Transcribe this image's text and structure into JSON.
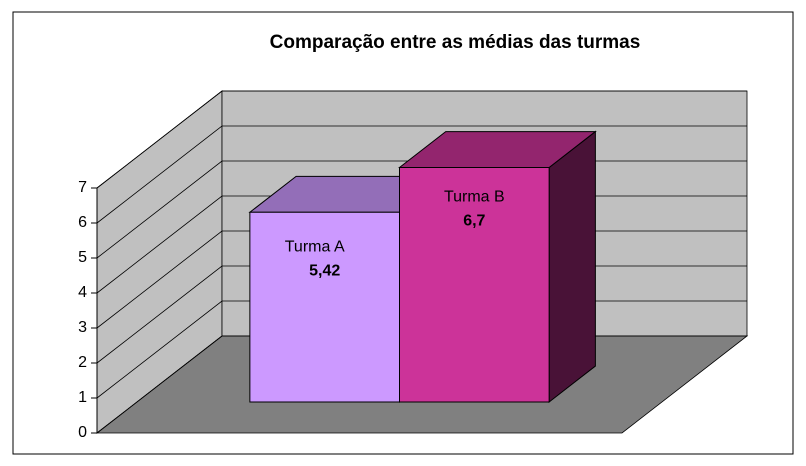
{
  "chart_data": {
    "type": "bar3d",
    "title": "Comparação entre as médias das turmas",
    "categories": [
      "Turma A",
      "Turma B"
    ],
    "values": [
      5.42,
      6.7
    ],
    "value_labels": [
      "5,42",
      "6,7"
    ],
    "colors": [
      "#cc99ff",
      "#cc3399"
    ],
    "ylim": [
      0,
      7
    ],
    "yticks": [
      0,
      1,
      2,
      3,
      4,
      5,
      6,
      7
    ],
    "grid": true
  }
}
